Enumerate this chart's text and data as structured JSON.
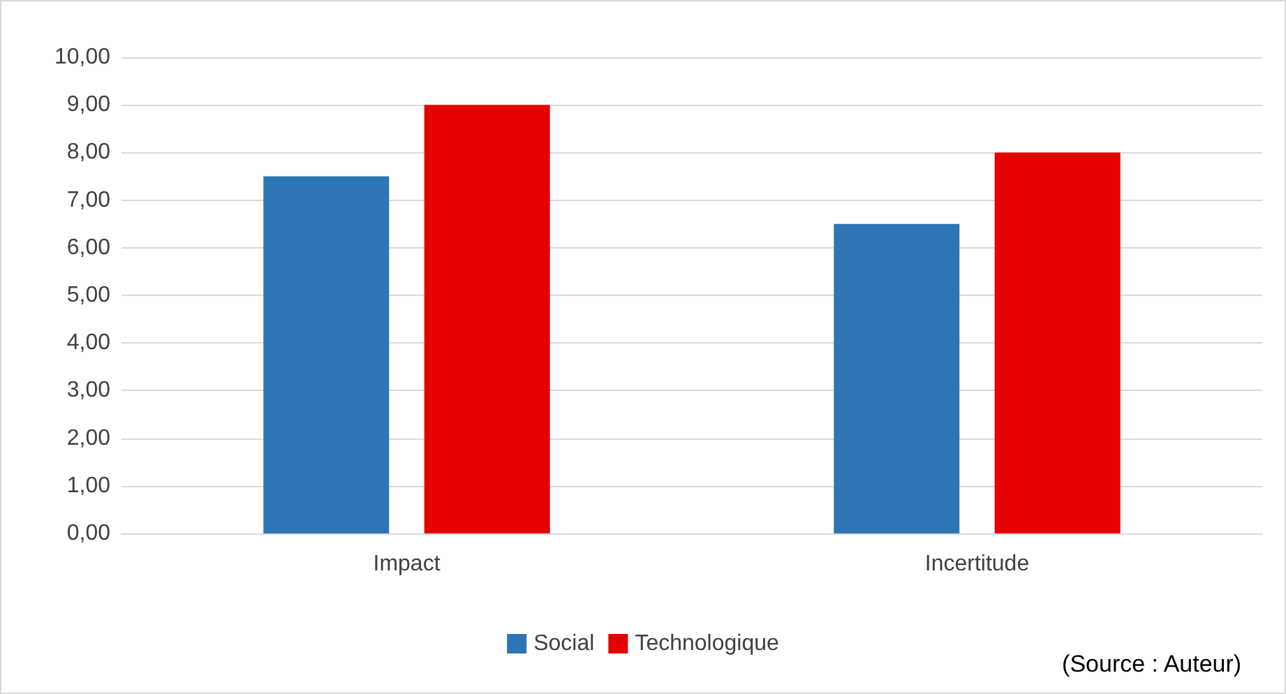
{
  "chart_data": {
    "type": "bar",
    "categories": [
      "Impact",
      "Incertitude"
    ],
    "series": [
      {
        "name": "Social",
        "color": "#2e75b6",
        "values": [
          7.5,
          6.5
        ]
      },
      {
        "name": "Technologique",
        "color": "#e60000",
        "values": [
          9.0,
          8.0
        ]
      }
    ],
    "ylim": [
      0,
      10
    ],
    "yticks": [
      {
        "value": 0,
        "label": "0,00"
      },
      {
        "value": 1,
        "label": "1,00"
      },
      {
        "value": 2,
        "label": "2,00"
      },
      {
        "value": 3,
        "label": "3,00"
      },
      {
        "value": 4,
        "label": "4,00"
      },
      {
        "value": 5,
        "label": "5,00"
      },
      {
        "value": 6,
        "label": "6,00"
      },
      {
        "value": 7,
        "label": "7,00"
      },
      {
        "value": 8,
        "label": "8,00"
      },
      {
        "value": 9,
        "label": "9,00"
      },
      {
        "value": 10,
        "label": "10,00"
      }
    ],
    "grid": "y",
    "legend": "bottom",
    "annotations": [
      "(Source : Auteur)"
    ]
  }
}
